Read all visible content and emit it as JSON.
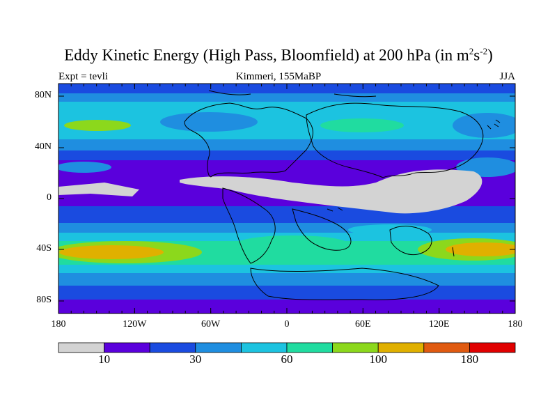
{
  "title": {
    "text": "Eddy Kinetic Energy (High Pass, Bloomfield) at 200 hPa (in m",
    "sup1": "2",
    "mid": "s",
    "sup2": "-2",
    "end": ")"
  },
  "left_string": "Expt = tevli",
  "center_string": "Kimmeri, 155MaBP",
  "right_string": "JJA",
  "axes": {
    "y_labels": [
      "80N",
      "40N",
      "0",
      "40S",
      "80S"
    ],
    "x_labels": [
      "180",
      "120W",
      "60W",
      "0",
      "60E",
      "120E",
      "180"
    ]
  },
  "colorbar": {
    "colors": [
      "#d3d3d3",
      "#5a00dc",
      "#1a4be0",
      "#1f8ee0",
      "#1cc3e0",
      "#20dca0",
      "#8cd81c",
      "#e0b000",
      "#e05a10",
      "#e00000"
    ],
    "labels": [
      "10",
      "30",
      "60",
      "100",
      "180"
    ]
  },
  "palette": {
    "grey": "#d3d3d3",
    "purple": "#5a00dc",
    "blue": "#1a4be0",
    "mid_blue": "#1f8ee0",
    "cyan": "#1cc3e0",
    "teal": "#20dca0",
    "green": "#8cd81c",
    "orange": "#e0b000"
  }
}
